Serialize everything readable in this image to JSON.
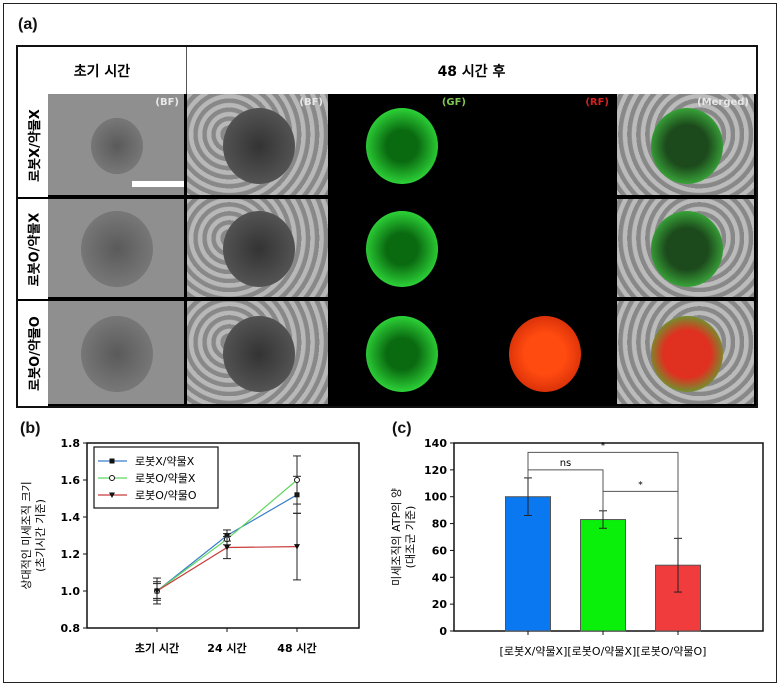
{
  "panel_a": {
    "label": "(a)",
    "header_initial": "초기 시간",
    "header_48": "48 시간 후",
    "rows": [
      "로봇X/약물X",
      "로봇O/약물X",
      "로봇O/약물O"
    ],
    "channel_tags": [
      "(BF)",
      "(BF)",
      "(GF)",
      "(RF)",
      "(Merged)"
    ],
    "colors": {
      "gf": "#7ec850",
      "rf": "#d42020",
      "merged": "#e8e8e8",
      "bf": "#ffffff"
    }
  },
  "chart_data": [
    {
      "panel": "(b)",
      "type": "line",
      "title": "",
      "xlabel": "",
      "ylabel": "상대적인 미세조직 크기",
      "ylabel2": "(초기시간 기준)",
      "categories": [
        "초기 시간",
        "24 시간",
        "48 시간"
      ],
      "ylim": [
        0.8,
        1.8
      ],
      "yticks": [
        "0.8",
        "1.0",
        "1.2",
        "1.4",
        "1.6",
        "1.8"
      ],
      "legend_placement": "top-left",
      "series": [
        {
          "name": "로봇X/약물X",
          "color": "#3a7dc9",
          "marker": "square",
          "values": [
            1.0,
            1.3,
            1.52
          ],
          "errors": [
            0.07,
            0.03,
            0.1
          ]
        },
        {
          "name": "로봇O/약물X",
          "color": "#5fd85f",
          "marker": "open-circle",
          "values": [
            1.0,
            1.28,
            1.6
          ],
          "errors": [
            0.05,
            0.03,
            0.13
          ]
        },
        {
          "name": "로봇O/약물O",
          "color": "#c83c3c",
          "marker": "triangle-down",
          "values": [
            1.0,
            1.235,
            1.24
          ],
          "errors": [
            0.04,
            0.06,
            0.18
          ]
        }
      ]
    },
    {
      "panel": "(c)",
      "type": "bar",
      "title": "",
      "xlabel": "",
      "ylabel": "미세조직의 ATP의 양",
      "ylabel2": "(대조군 기준)",
      "categories": [
        "[로봇X/약물X]",
        "[로봇O/약물X]",
        "[로봇O/약물O]"
      ],
      "ylim": [
        0,
        140
      ],
      "yticks": [
        "0",
        "20",
        "40",
        "60",
        "80",
        "100",
        "120",
        "140"
      ],
      "values": [
        100,
        83,
        49
      ],
      "errors": [
        14,
        6.5,
        20
      ],
      "colors": [
        "#0a78f0",
        "#0af00a",
        "#f03c3c"
      ],
      "significance": [
        {
          "pair": [
            0,
            1
          ],
          "label": "ns",
          "y": 120
        },
        {
          "pair": [
            0,
            2
          ],
          "label": "*",
          "y": 133
        },
        {
          "pair": [
            1,
            2
          ],
          "label": "*",
          "y": 104
        }
      ]
    }
  ]
}
